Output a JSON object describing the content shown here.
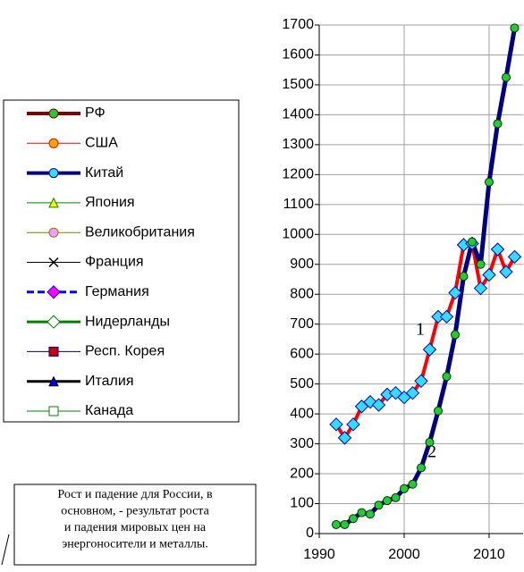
{
  "chart_data": {
    "type": "line",
    "x": [
      1992,
      1993,
      1994,
      1995,
      1996,
      1997,
      1998,
      1999,
      2000,
      2001,
      2002,
      2003,
      2004,
      2005,
      2006,
      2007,
      2008,
      2009,
      2010,
      2011,
      2012,
      2013
    ],
    "series": [
      {
        "name": "1",
        "color": "#ff0000",
        "marker": "diamond",
        "marker_color": "#33ddff",
        "values": [
          365,
          320,
          365,
          425,
          440,
          430,
          465,
          470,
          455,
          470,
          510,
          615,
          725,
          725,
          805,
          965,
          970,
          820,
          865,
          950,
          875,
          925
        ]
      },
      {
        "name": "2",
        "color": "#000080",
        "marker": "circle",
        "marker_color": "#22cc33",
        "values": [
          30,
          30,
          50,
          70,
          65,
          95,
          110,
          120,
          150,
          165,
          220,
          305,
          410,
          525,
          665,
          860,
          975,
          900,
          1175,
          1370,
          1525,
          1690
        ]
      }
    ],
    "xlim": [
      1990,
      2014
    ],
    "xticks": [
      1990,
      2000,
      2010
    ],
    "ylim": [
      0,
      1700
    ],
    "yticks": [
      0,
      100,
      200,
      300,
      400,
      500,
      600,
      700,
      800,
      900,
      1000,
      1100,
      1200,
      1300,
      1400,
      1500,
      1600,
      1700
    ],
    "grid": true,
    "legend": [
      {
        "name": "РФ",
        "color": "#800000",
        "width": 4,
        "marker": "circle",
        "marker_color": "#22cc33"
      },
      {
        "name": "США",
        "color": "#ff0000",
        "width": 1,
        "marker": "circle",
        "marker_color": "#ffaa00"
      },
      {
        "name": "Китай",
        "color": "#000080",
        "width": 4,
        "marker": "circle",
        "marker_color": "#33ddff"
      },
      {
        "name": "Япония",
        "color": "#008000",
        "width": 1,
        "marker": "triangle",
        "marker_color": "#ffff00"
      },
      {
        "name": "Великобритания",
        "color": "#808000",
        "width": 1,
        "marker": "circle",
        "marker_color": "#ff99ff"
      },
      {
        "name": "Франция",
        "color": "#000000",
        "width": 1,
        "marker": "x",
        "marker_color": "#000000"
      },
      {
        "name": "Германия",
        "color": "#0000ff",
        "width": 3,
        "dash": true,
        "marker": "diamond",
        "marker_color": "#ff00ff"
      },
      {
        "name": "Нидерланды",
        "color": "#008000",
        "width": 3,
        "marker": "diamond",
        "marker_color": "#ffffff"
      },
      {
        "name": "Респ. Корея",
        "color": "#000080",
        "width": 1,
        "marker": "square",
        "marker_color": "#cc0000"
      },
      {
        "name": "Италия",
        "color": "#000000",
        "width": 3,
        "marker": "triangle",
        "marker_color": "#0000ff"
      },
      {
        "name": "Канада",
        "color": "#008000",
        "width": 1,
        "marker": "square",
        "marker_color": "#ffffff"
      }
    ],
    "annotation": [
      "Рост и падение для России, в",
      "основном, - результат  роста",
      "и падения мировых цен на",
      "энергоносители и металлы."
    ]
  }
}
